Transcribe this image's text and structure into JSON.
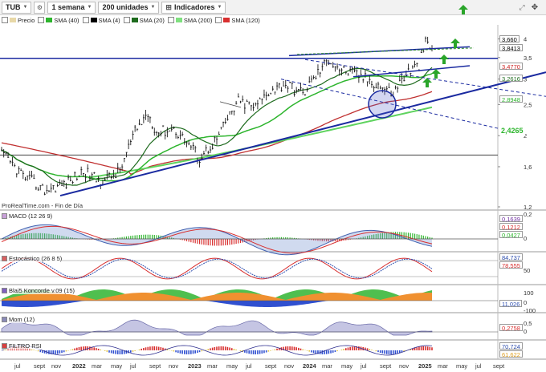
{
  "toolbar": {
    "symbol": "TUB",
    "period": "1 semana",
    "units": "200 unidades",
    "indicators": "Indicadores"
  },
  "legend": [
    {
      "label": "Precio",
      "color": "#e8d8a8"
    },
    {
      "label": "SMA (40)",
      "color": "#2db52d"
    },
    {
      "label": "SMA (4)",
      "color": "#000000"
    },
    {
      "label": "SMA (20)",
      "color": "#1e6b1e"
    },
    {
      "label": "SMA (200)",
      "color": "#7fe07f"
    },
    {
      "label": "SMA (120)",
      "color": "#d83030"
    }
  ],
  "price_axis": [
    "4",
    "3,5",
    "3",
    "2,5",
    "2",
    "1,6",
    "1,2"
  ],
  "price_badges": [
    {
      "text": "3,660",
      "bg": "#ffffff",
      "color": "#000000"
    },
    {
      "text": "3,8413",
      "bg": "#ffffff",
      "color": "#000000"
    },
    {
      "text": "3,4770",
      "bg": "#ffffff",
      "color": "#cc2222"
    },
    {
      "text": "3,2616",
      "bg": "#ffffff",
      "color": "#1e6b1e"
    },
    {
      "text": "2,8948",
      "bg": "#ffffff",
      "color": "#2db52d"
    },
    {
      "text": "2,4265",
      "bg": "#ffffff",
      "color": "#2db52d"
    }
  ],
  "watermark": "ProRealTime.com - Fin de Día",
  "panes": {
    "macd": {
      "label": "MACD (12 26 9)",
      "badges": [
        "0,1639",
        "0,1212",
        "0,0427"
      ],
      "axis": [
        "0,2",
        "0"
      ]
    },
    "stoch": {
      "label": "Estocástico (26 8 5)",
      "badges": [
        "84,737",
        "78,555"
      ],
      "axis": [
        "50"
      ]
    },
    "blai5": {
      "label": "Blai5 Koncorde v.09 (15)",
      "badges": [
        "11,026"
      ],
      "axis": [
        "100",
        "0",
        "-100"
      ]
    },
    "mom": {
      "label": "Mom (12)",
      "badges": [
        "0,2758"
      ],
      "axis": [
        "0,5",
        "0"
      ]
    },
    "rsi": {
      "label": "FILTRO RSI",
      "badges": [
        "70,724",
        "61,622"
      ],
      "axis": []
    }
  },
  "xaxis": [
    {
      "label": "jul",
      "bold": false
    },
    {
      "label": "sept",
      "bold": false
    },
    {
      "label": "nov",
      "bold": false
    },
    {
      "label": "2022",
      "bold": true
    },
    {
      "label": "mar",
      "bold": false
    },
    {
      "label": "may",
      "bold": false
    },
    {
      "label": "jul",
      "bold": false
    },
    {
      "label": "sept",
      "bold": false
    },
    {
      "label": "nov",
      "bold": false
    },
    {
      "label": "2023",
      "bold": true
    },
    {
      "label": "mar",
      "bold": false
    },
    {
      "label": "may",
      "bold": false
    },
    {
      "label": "jul",
      "bold": false
    },
    {
      "label": "sept",
      "bold": false
    },
    {
      "label": "nov",
      "bold": false
    },
    {
      "label": "2024",
      "bold": true
    },
    {
      "label": "mar",
      "bold": false
    },
    {
      "label": "may",
      "bold": false
    },
    {
      "label": "jul",
      "bold": false
    },
    {
      "label": "sept",
      "bold": false
    },
    {
      "label": "nov",
      "bold": false
    },
    {
      "label": "2025",
      "bold": true
    },
    {
      "label": "mar",
      "bold": false
    },
    {
      "label": "may",
      "bold": false
    },
    {
      "label": "jul",
      "bold": false
    },
    {
      "label": "sept",
      "bold": false
    }
  ],
  "icons": [
    "settings-icon",
    "chevron-down-icon",
    "arrow-up-icon",
    "move-icon"
  ]
}
